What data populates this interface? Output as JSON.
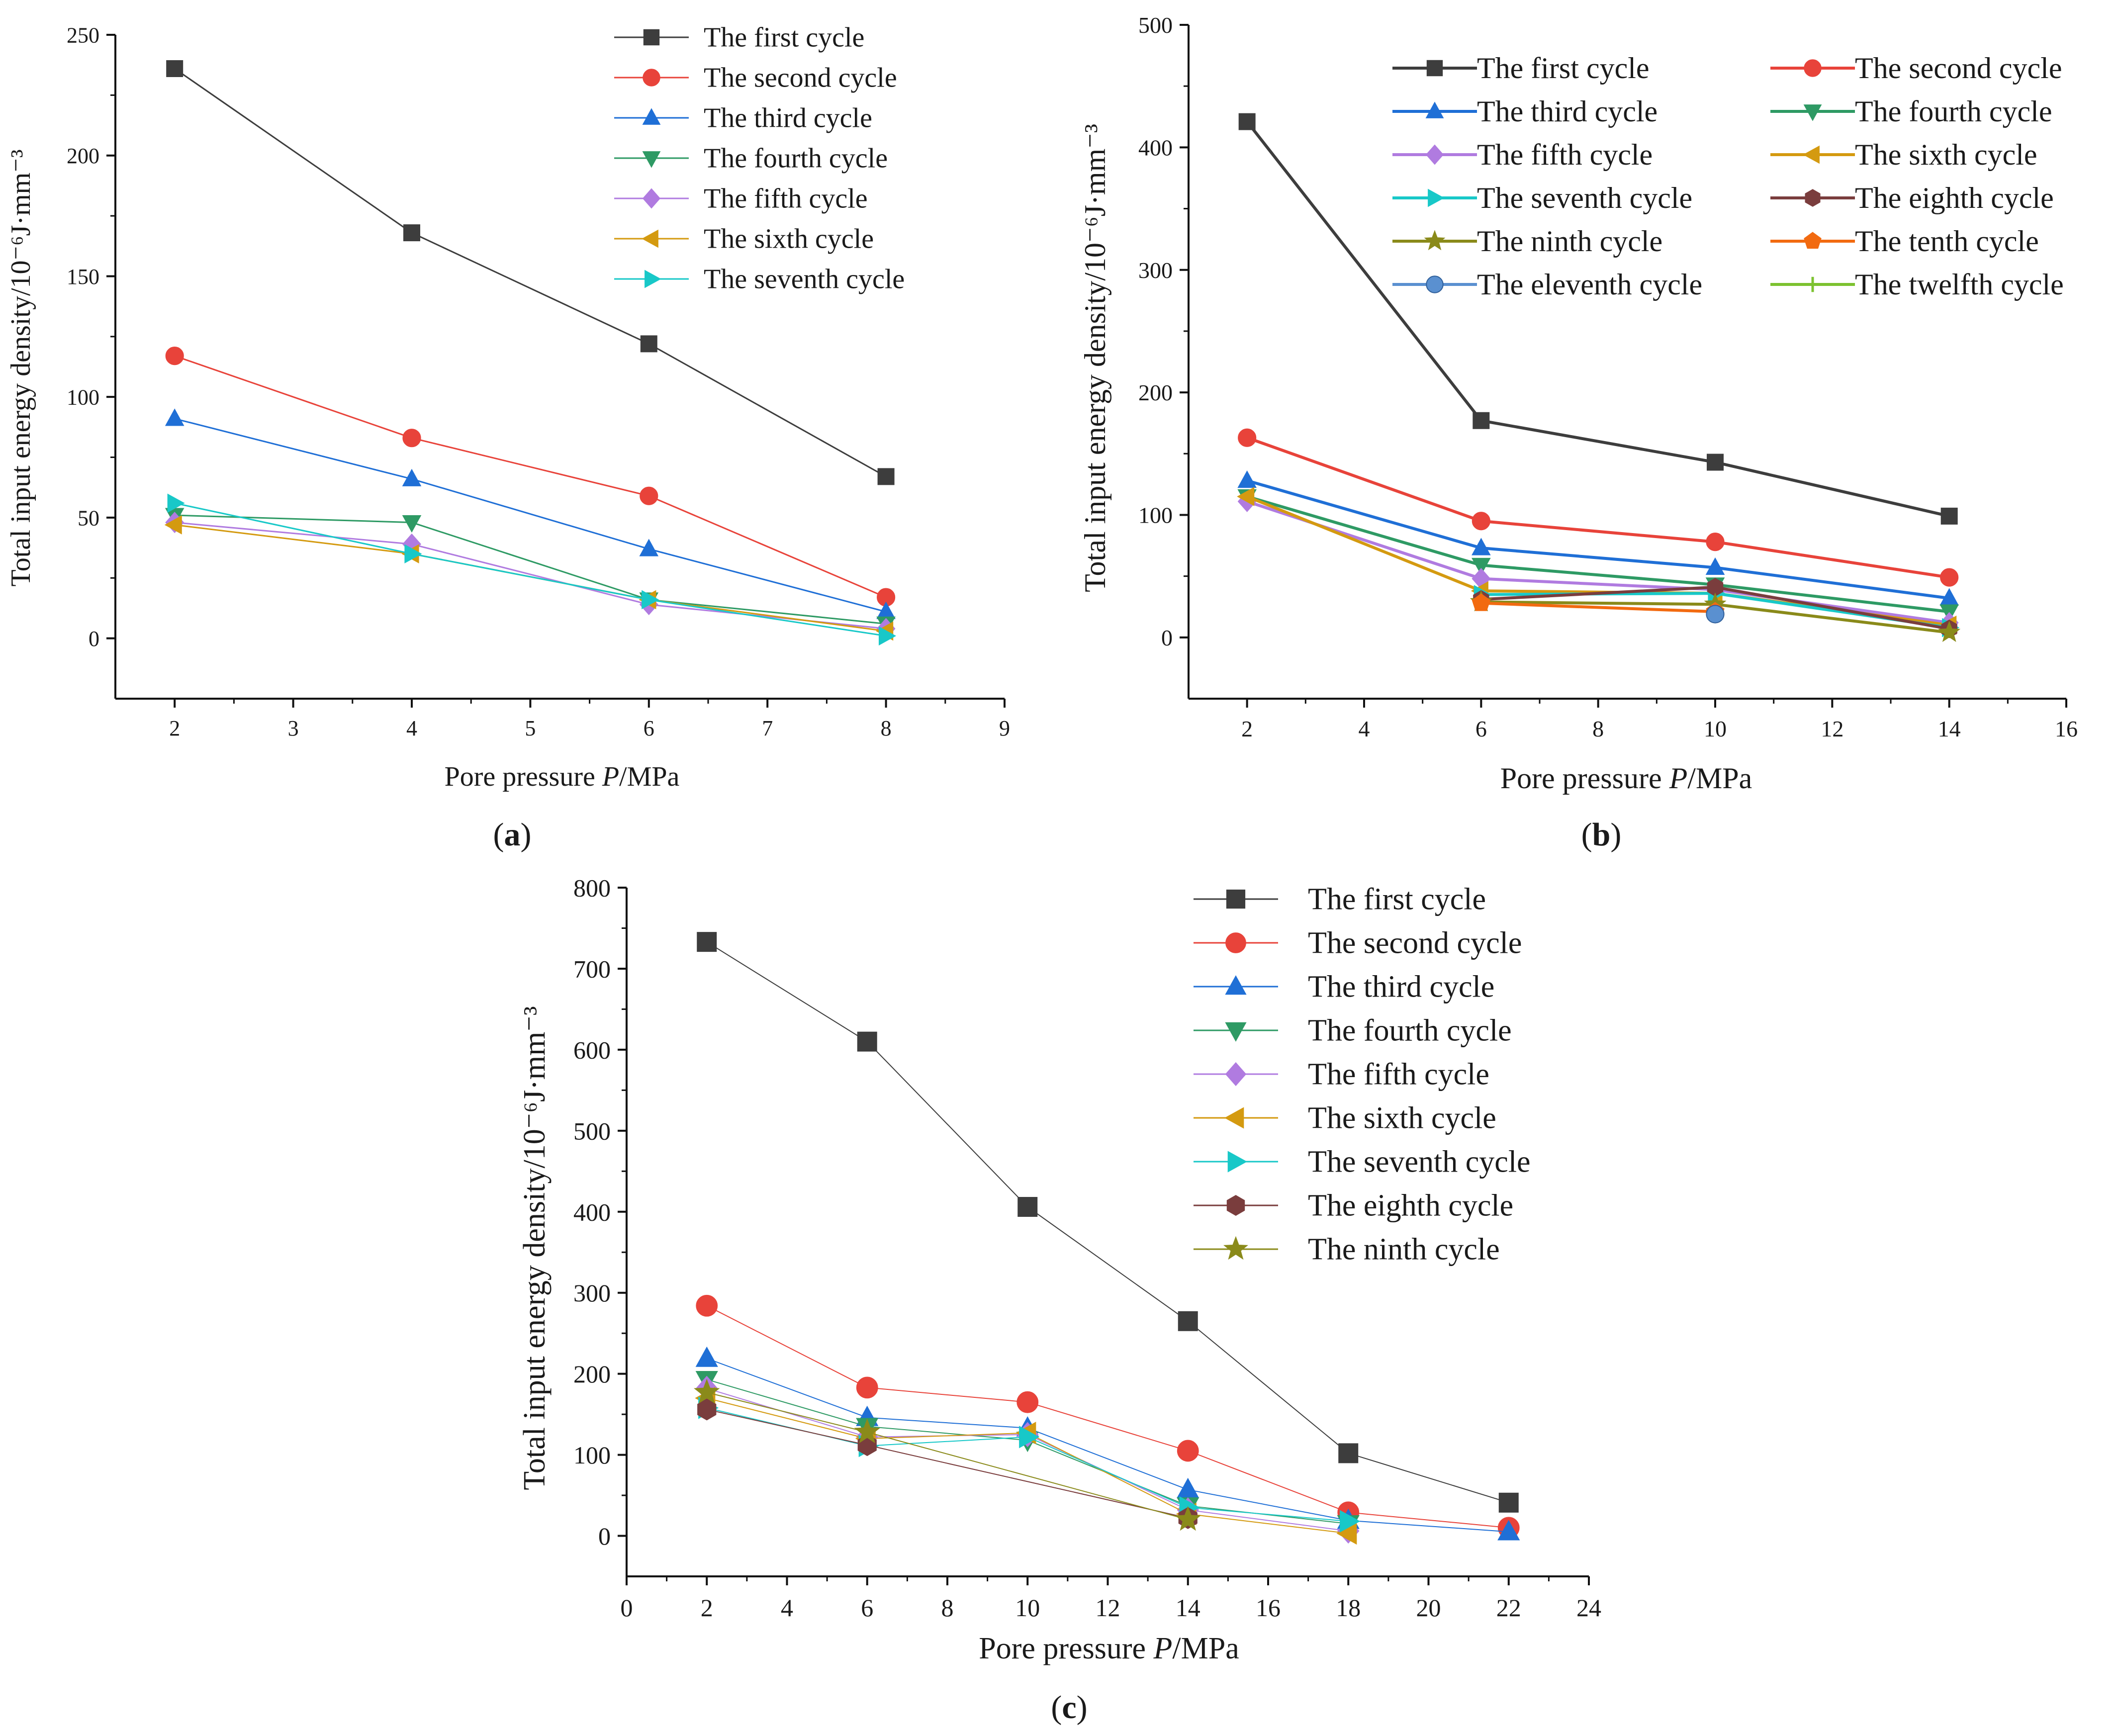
{
  "panel_labels": [
    "(a)",
    "(b)",
    "(c)"
  ],
  "colors": {
    "first": "#3d3d3d",
    "second": "#e8433a",
    "third": "#1f6fd6",
    "fourth": "#2e9a64",
    "fifth": "#b07be0",
    "sixth": "#d49a10",
    "seventh": "#18c8c8",
    "eighth": "#7a3d3d",
    "ninth": "#8a8a1a",
    "tenth": "#f26a10",
    "eleventh": "#5a90d0",
    "twelfth": "#7cc230"
  },
  "chart_data": [
    {
      "panel": "(a)",
      "type": "line",
      "xlabel_prefix": "Pore pressure",
      "xlabel_var": "P",
      "xlabel_unit": "/MPa",
      "ylabel": "Total input energy density/10⁻⁶J·mm⁻³",
      "xlim": [
        1.5,
        9
      ],
      "ylim": [
        -25,
        250
      ],
      "xticks": [
        2,
        3,
        4,
        5,
        6,
        7,
        8,
        9
      ],
      "yticks": [
        0,
        50,
        100,
        150,
        200,
        250
      ],
      "legend_position": "top-right",
      "series": [
        {
          "name": "The first cycle",
          "color_key": "first",
          "marker": "square",
          "x": [
            2,
            4,
            6,
            8
          ],
          "y": [
            236,
            168,
            122,
            67
          ]
        },
        {
          "name": "The second cycle",
          "color_key": "second",
          "marker": "circle",
          "x": [
            2,
            4,
            6,
            8
          ],
          "y": [
            117,
            83,
            59,
            17
          ]
        },
        {
          "name": "The third cycle",
          "color_key": "third",
          "marker": "triangle-up",
          "x": [
            2,
            4,
            6,
            8
          ],
          "y": [
            91,
            66,
            37,
            11
          ]
        },
        {
          "name": "The fourth cycle",
          "color_key": "fourth",
          "marker": "triangle-down",
          "x": [
            2,
            4,
            6,
            8
          ],
          "y": [
            51,
            48,
            16,
            6
          ]
        },
        {
          "name": "The fifth cycle",
          "color_key": "fifth",
          "marker": "diamond",
          "x": [
            2,
            4,
            6,
            8
          ],
          "y": [
            48,
            39,
            14,
            4
          ]
        },
        {
          "name": "The sixth cycle",
          "color_key": "sixth",
          "marker": "triangle-left",
          "x": [
            2,
            4,
            6,
            8
          ],
          "y": [
            47,
            35,
            16,
            3
          ]
        },
        {
          "name": "The seventh cycle",
          "color_key": "seventh",
          "marker": "triangle-right",
          "x": [
            2,
            4,
            6,
            8
          ],
          "y": [
            56,
            35,
            16,
            1
          ]
        }
      ]
    },
    {
      "panel": "(b)",
      "type": "line",
      "xlabel_prefix": "Pore pressure",
      "xlabel_var": "P",
      "xlabel_unit": "/MPa",
      "ylabel": "Total input energy density/10⁻⁶J·mm⁻³",
      "xlim": [
        1,
        16
      ],
      "ylim": [
        -50,
        500
      ],
      "xticks": [
        2,
        4,
        6,
        8,
        10,
        12,
        14,
        16
      ],
      "yticks": [
        0,
        100,
        200,
        300,
        400,
        500
      ],
      "legend_position": "top-right",
      "series": [
        {
          "name": "The first cycle",
          "color_key": "first",
          "marker": "square",
          "x": [
            2,
            6,
            10,
            14
          ],
          "y": [
            421,
            177,
            143,
            99
          ]
        },
        {
          "name": "The second cycle",
          "color_key": "second",
          "marker": "circle",
          "x": [
            2,
            6,
            10,
            14
          ],
          "y": [
            163,
            95,
            78,
            49
          ]
        },
        {
          "name": "The third cycle",
          "color_key": "third",
          "marker": "triangle-up",
          "x": [
            2,
            6,
            10,
            14
          ],
          "y": [
            128,
            73,
            57,
            32
          ]
        },
        {
          "name": "The fourth cycle",
          "color_key": "fourth",
          "marker": "triangle-down",
          "x": [
            2,
            6,
            10,
            14
          ],
          "y": [
            115,
            59,
            43,
            21
          ]
        },
        {
          "name": "The fifth cycle",
          "color_key": "fifth",
          "marker": "diamond",
          "x": [
            2,
            6,
            10,
            14
          ],
          "y": [
            111,
            48,
            39,
            12
          ]
        },
        {
          "name": "The sixth cycle",
          "color_key": "sixth",
          "marker": "triangle-left",
          "x": [
            2,
            6,
            10,
            14
          ],
          "y": [
            115,
            38,
            36,
            10
          ]
        },
        {
          "name": "The seventh cycle",
          "color_key": "seventh",
          "marker": "triangle-right",
          "x": [
            6,
            10,
            14
          ],
          "y": [
            35,
            36,
            8
          ]
        },
        {
          "name": "The eighth cycle",
          "color_key": "eighth",
          "marker": "hexagon",
          "x": [
            6,
            10,
            14
          ],
          "y": [
            31,
            41,
            7
          ]
        },
        {
          "name": "The ninth cycle",
          "color_key": "ninth",
          "marker": "star",
          "x": [
            6,
            10,
            14
          ],
          "y": [
            29,
            27,
            4
          ]
        },
        {
          "name": "The tenth cycle",
          "color_key": "tenth",
          "marker": "pentagon",
          "x": [
            6,
            10
          ],
          "y": [
            28,
            21
          ]
        },
        {
          "name": "The eleventh cycle",
          "color_key": "eleventh",
          "marker": "sphere",
          "x": [
            10
          ],
          "y": [
            19
          ]
        },
        {
          "name": "The twelfth cycle",
          "color_key": "twelfth",
          "marker": "plus",
          "x": [],
          "y": []
        }
      ]
    },
    {
      "panel": "(c)",
      "type": "line",
      "xlabel_prefix": "Pore pressure",
      "xlabel_var": "P",
      "xlabel_unit": "/MPa",
      "ylabel": "Total input energy density/10⁻⁶J·mm⁻³",
      "xlim": [
        0,
        24
      ],
      "ylim": [
        -50,
        800
      ],
      "xticks": [
        0,
        2,
        4,
        6,
        8,
        10,
        12,
        14,
        16,
        18,
        20,
        22,
        24
      ],
      "yticks": [
        0,
        100,
        200,
        300,
        400,
        500,
        600,
        700,
        800
      ],
      "legend_position": "top-right",
      "series": [
        {
          "name": "The first cycle",
          "color_key": "first",
          "marker": "square",
          "x": [
            2,
            6,
            10,
            14,
            18,
            22
          ],
          "y": [
            733,
            610,
            406,
            265,
            102,
            41
          ]
        },
        {
          "name": "The second cycle",
          "color_key": "second",
          "marker": "circle",
          "x": [
            2,
            6,
            10,
            14,
            18,
            22
          ],
          "y": [
            284,
            183,
            165,
            105,
            29,
            10
          ]
        },
        {
          "name": "The third cycle",
          "color_key": "third",
          "marker": "triangle-up",
          "x": [
            2,
            6,
            10,
            14,
            18,
            22
          ],
          "y": [
            219,
            146,
            133,
            57,
            19,
            5
          ]
        },
        {
          "name": "The fourth cycle",
          "color_key": "fourth",
          "marker": "triangle-down",
          "x": [
            2,
            6,
            10,
            14,
            18
          ],
          "y": [
            193,
            135,
            118,
            37,
            15
          ]
        },
        {
          "name": "The fifth cycle",
          "color_key": "fifth",
          "marker": "diamond",
          "x": [
            2,
            6,
            10,
            14,
            18
          ],
          "y": [
            182,
            122,
            125,
            32,
            6
          ]
        },
        {
          "name": "The sixth cycle",
          "color_key": "sixth",
          "marker": "triangle-left",
          "x": [
            2,
            6,
            10,
            14,
            18
          ],
          "y": [
            170,
            120,
            127,
            27,
            3
          ]
        },
        {
          "name": "The seventh cycle",
          "color_key": "seventh",
          "marker": "triangle-right",
          "x": [
            2,
            6,
            10,
            14,
            18
          ],
          "y": [
            158,
            111,
            122,
            35,
            18
          ]
        },
        {
          "name": "The eighth cycle",
          "color_key": "eighth",
          "marker": "hexagon",
          "x": [
            2,
            6,
            14
          ],
          "y": [
            156,
            112,
            22
          ]
        },
        {
          "name": "The ninth cycle",
          "color_key": "ninth",
          "marker": "star",
          "x": [
            2,
            6,
            14
          ],
          "y": [
            177,
            128,
            20
          ]
        }
      ]
    }
  ]
}
